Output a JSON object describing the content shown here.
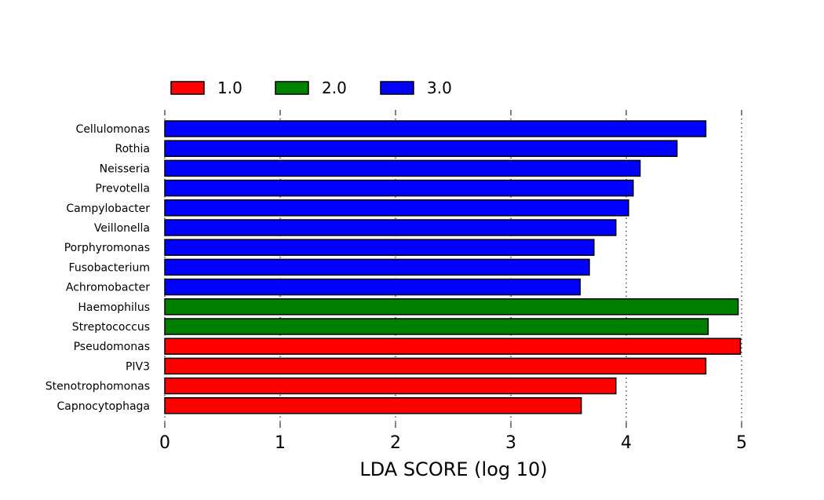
{
  "chart_data": {
    "type": "bar",
    "orientation": "horizontal",
    "title": "",
    "xlabel": "LDA SCORE (log 10)",
    "ylabel": "",
    "xlim": [
      0,
      5
    ],
    "xticks": [
      "0",
      "1",
      "2",
      "3",
      "4",
      "5"
    ],
    "grid": "vertical dotted",
    "legend_position": "top-left",
    "legend": [
      {
        "name": "1.0",
        "color": "#ff0000"
      },
      {
        "name": "2.0",
        "color": "#008000"
      },
      {
        "name": "3.0",
        "color": "#0000ff"
      }
    ],
    "bars": [
      {
        "category": "Cellulomonas",
        "value": 4.69,
        "group": "3.0"
      },
      {
        "category": "Rothia",
        "value": 4.44,
        "group": "3.0"
      },
      {
        "category": "Neisseria",
        "value": 4.12,
        "group": "3.0"
      },
      {
        "category": "Prevotella",
        "value": 4.06,
        "group": "3.0"
      },
      {
        "category": "Campylobacter",
        "value": 4.02,
        "group": "3.0"
      },
      {
        "category": "Veillonella",
        "value": 3.91,
        "group": "3.0"
      },
      {
        "category": "Porphyromonas",
        "value": 3.72,
        "group": "3.0"
      },
      {
        "category": "Fusobacterium",
        "value": 3.68,
        "group": "3.0"
      },
      {
        "category": "Achromobacter",
        "value": 3.6,
        "group": "3.0"
      },
      {
        "category": "Haemophilus",
        "value": 4.97,
        "group": "2.0"
      },
      {
        "category": "Streptococcus",
        "value": 4.71,
        "group": "2.0"
      },
      {
        "category": "Pseudomonas",
        "value": 4.99,
        "group": "1.0"
      },
      {
        "category": "PIV3",
        "value": 4.69,
        "group": "1.0"
      },
      {
        "category": "Stenotrophomonas",
        "value": 3.91,
        "group": "1.0"
      },
      {
        "category": "Capnocytophaga",
        "value": 3.61,
        "group": "1.0"
      }
    ]
  }
}
